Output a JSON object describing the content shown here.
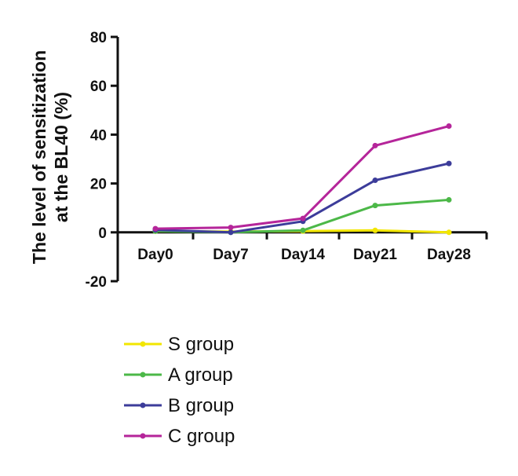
{
  "chart_data": {
    "type": "line",
    "title": "",
    "xlabel": "",
    "ylabel_lines": [
      "The level of sensitization",
      "at the BL40 (%)"
    ],
    "categories": [
      "Day0",
      "Day7",
      "Day14",
      "Day21",
      "Day28"
    ],
    "ylim": [
      -20,
      80
    ],
    "yticks": [
      -20,
      0,
      20,
      40,
      60,
      80
    ],
    "grid": false,
    "legend_position": "bottom-left",
    "series": [
      {
        "name": "S group",
        "color": "#f2e600",
        "values": [
          0.5,
          0.3,
          0.5,
          0.8,
          0.0
        ]
      },
      {
        "name": "A group",
        "color": "#4cb848",
        "values": [
          0.5,
          0.0,
          0.8,
          11.0,
          13.3
        ]
      },
      {
        "name": "B group",
        "color": "#3c3c9a",
        "values": [
          1.0,
          0.0,
          4.5,
          21.3,
          28.2
        ]
      },
      {
        "name": "C group",
        "color": "#b5259a",
        "values": [
          1.5,
          2.0,
          5.7,
          35.5,
          43.5
        ]
      }
    ]
  }
}
